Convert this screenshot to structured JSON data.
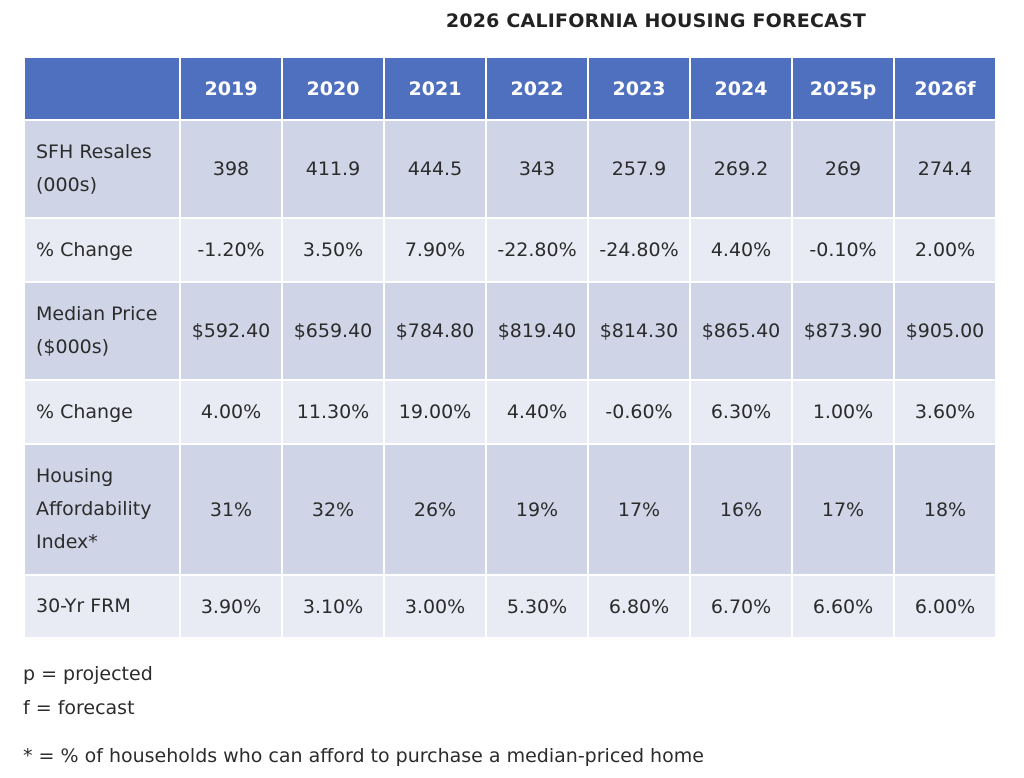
{
  "title": "2026 CALIFORNIA HOUSING FORECAST",
  "table": {
    "corner_header": "",
    "columns": [
      "2019",
      "2020",
      "2021",
      "2022",
      "2023",
      "2024",
      "2025p",
      "2026f"
    ],
    "rows": [
      {
        "label_lines": [
          "SFH Resales",
          "(000s)"
        ],
        "values": [
          "398",
          "411.9",
          "444.5",
          "343",
          "257.9",
          "269.2",
          "269",
          "274.4"
        ]
      },
      {
        "label_lines": [
          "% Change"
        ],
        "values": [
          "-1.20%",
          "3.50%",
          "7.90%",
          "-22.80%",
          "-24.80%",
          "4.40%",
          "-0.10%",
          "2.00%"
        ]
      },
      {
        "label_lines": [
          "Median Price",
          "($000s)"
        ],
        "values": [
          "$592.40",
          "$659.40",
          "$784.80",
          "$819.40",
          "$814.30",
          "$865.40",
          "$873.90",
          "$905.00"
        ]
      },
      {
        "label_lines": [
          "% Change"
        ],
        "values": [
          "4.00%",
          "11.30%",
          "19.00%",
          "4.40%",
          "-0.60%",
          "6.30%",
          "1.00%",
          "3.60%"
        ]
      },
      {
        "label_lines": [
          "Housing",
          "Affordability",
          "Index*"
        ],
        "values": [
          "31%",
          "32%",
          "26%",
          "19%",
          "17%",
          "16%",
          "17%",
          "18%"
        ]
      },
      {
        "label_lines": [
          "30-Yr FRM"
        ],
        "values": [
          "3.90%",
          "3.10%",
          "3.00%",
          "5.30%",
          "6.80%",
          "6.70%",
          "6.60%",
          "6.00%"
        ]
      }
    ]
  },
  "notes": [
    "p = projected",
    "f = forecast",
    "* = % of households who can afford to purchase a median-priced home"
  ],
  "colors": {
    "header_bg": "#4F6FBF",
    "row_dark_bg": "#CFD5E7",
    "row_light_bg": "#E9EBF4"
  }
}
